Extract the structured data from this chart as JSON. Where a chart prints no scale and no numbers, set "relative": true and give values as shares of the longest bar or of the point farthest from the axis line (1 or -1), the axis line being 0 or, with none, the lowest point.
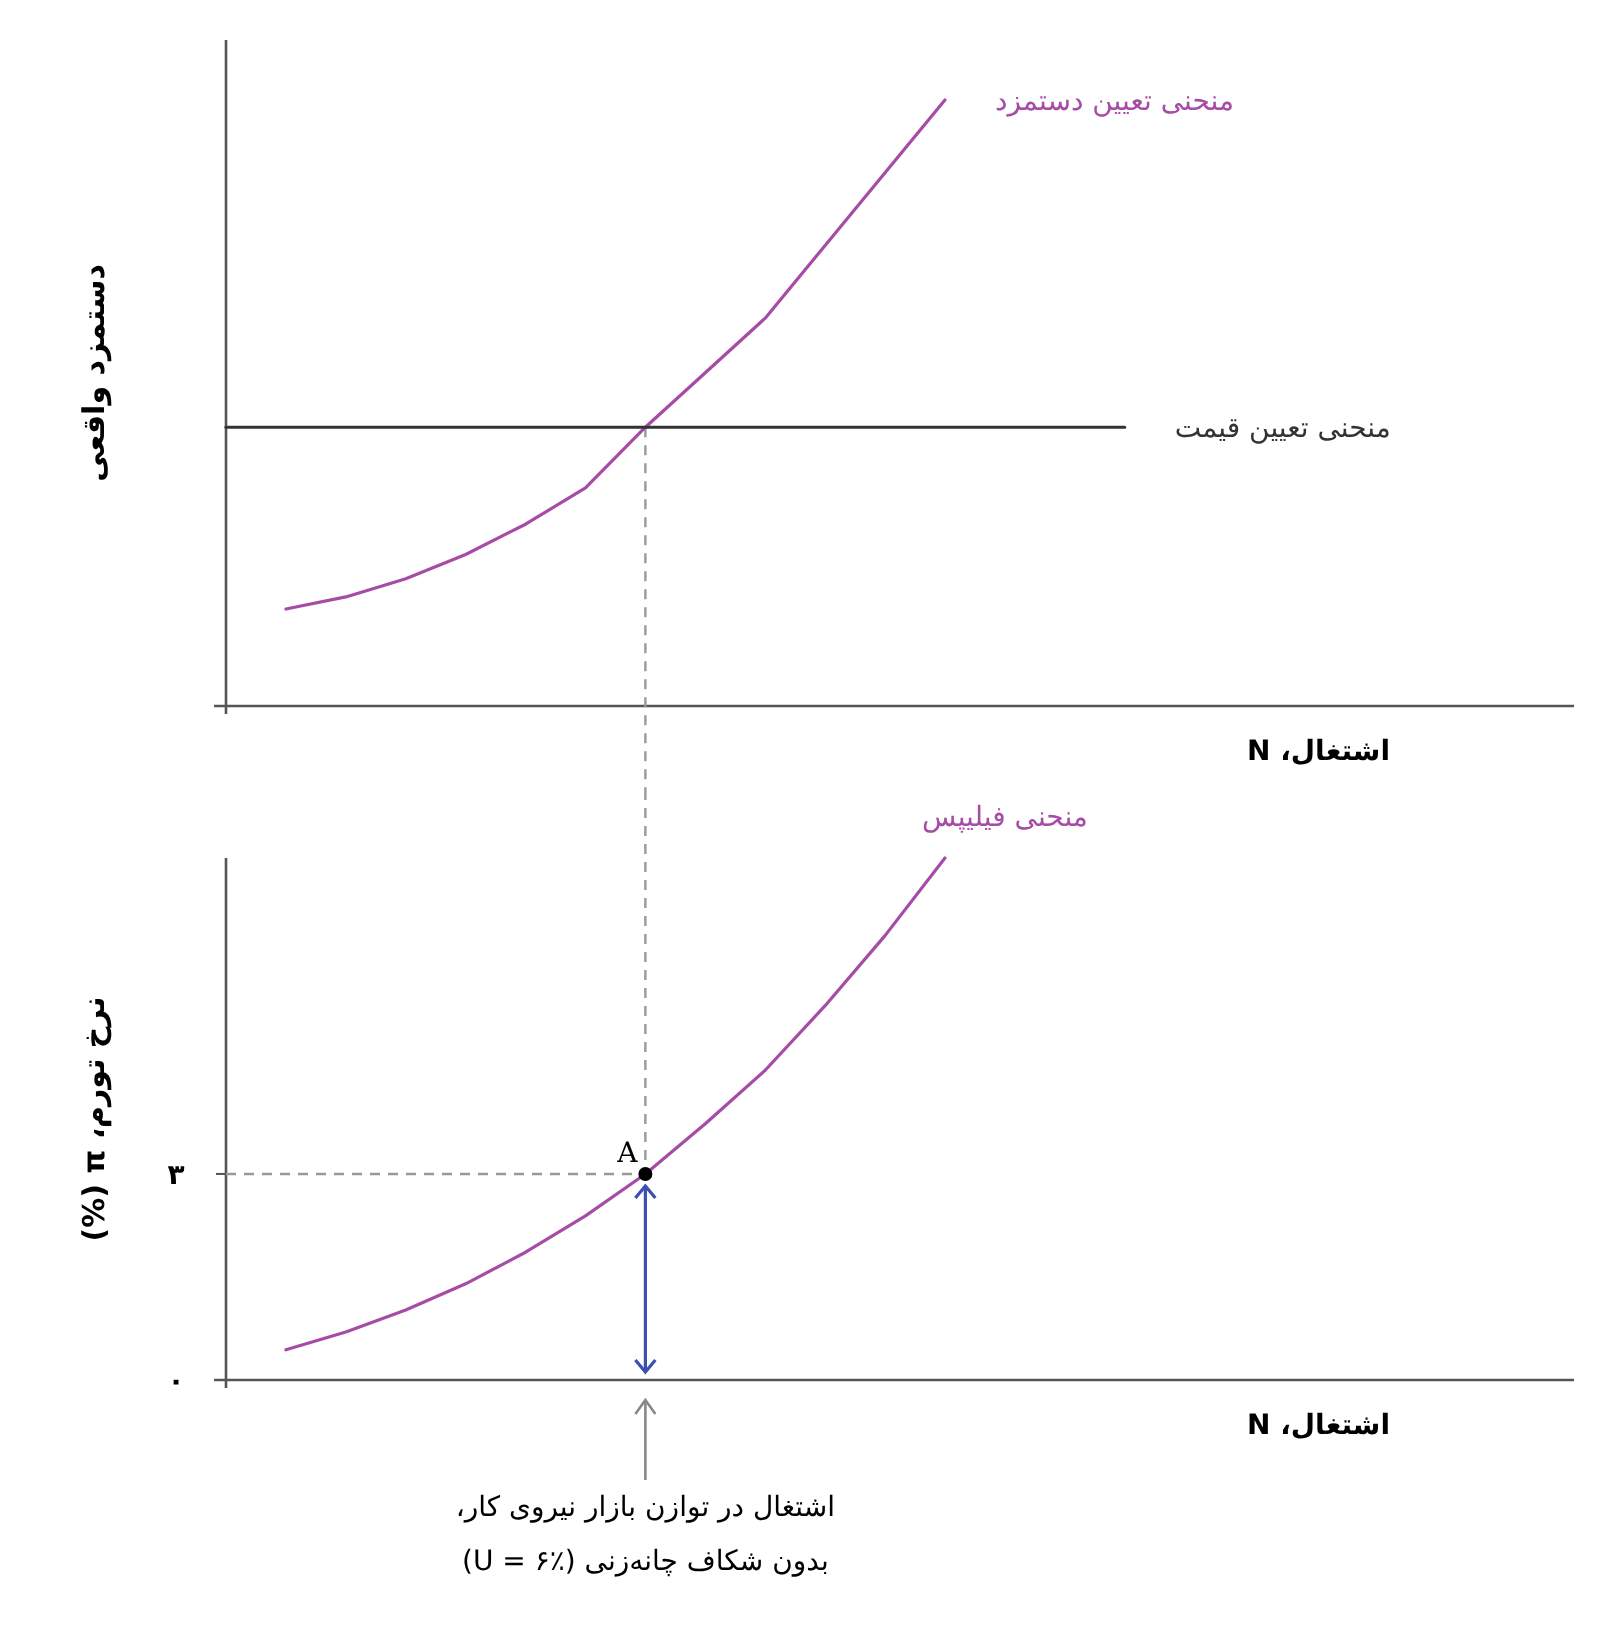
{
  "chart_data": [
    {
      "type": "line",
      "relative": true,
      "xlabel": "اشتغال، N",
      "ylabel": "دستمزد واقعی",
      "tick_labels": false,
      "categories": [
        null,
        null,
        null,
        null,
        null,
        null,
        null,
        null,
        null,
        null,
        null,
        null,
        null,
        null,
        null,
        null,
        null,
        null,
        null,
        null,
        null,
        null,
        null
      ],
      "series": [
        {
          "name": "منحنی تعیین دستمزد",
          "color": "#a64ca6",
          "values": [
            null,
            0.16,
            0.18,
            0.21,
            0.25,
            0.3,
            0.36,
            0.46,
            0.55,
            0.64,
            0.76,
            0.88,
            1.0,
            null,
            null,
            null,
            null,
            null,
            null,
            null,
            null,
            null,
            null
          ]
        },
        {
          "name": "منحنی تعیین قیمت",
          "color": "#333333",
          "values": [
            0.46,
            0.46,
            0.46,
            0.46,
            0.46,
            0.46,
            0.46,
            0.46,
            0.46,
            0.46,
            0.46,
            0.46,
            0.46,
            0.46,
            0.46,
            0.46,
            null,
            null,
            null,
            null,
            null,
            null,
            null
          ]
        }
      ]
    },
    {
      "type": "line",
      "xlabel": "اشتغال، N",
      "ylabel": "نرخ تورم، π (%)",
      "ylim": [
        0,
        7.6
      ],
      "yticks": [
        {
          "value": 0,
          "label": "۰"
        },
        {
          "value": 3,
          "label": "۳"
        }
      ],
      "tick_labels": "y",
      "categories": [
        null,
        null,
        null,
        null,
        null,
        null,
        null,
        null,
        null,
        null,
        null,
        null,
        null,
        null,
        null,
        null,
        null,
        null,
        null,
        null,
        null,
        null,
        null
      ],
      "series": [
        {
          "name": "منحنی فیلیپس",
          "color": "#a64ca6",
          "values": [
            null,
            0.44,
            0.7,
            1.02,
            1.4,
            1.86,
            2.39,
            3.0,
            3.73,
            4.51,
            5.45,
            6.47,
            7.6,
            null,
            null,
            null,
            null,
            null,
            null,
            null,
            null,
            null,
            null
          ]
        }
      ],
      "ref_lines": [
        {
          "axis": "y",
          "value": 3,
          "color": "#999999",
          "line_style": "dashed"
        }
      ],
      "annotations": [
        {
          "text": "A",
          "y": 3
        },
        "اشتغال در توازن بازار نیروی کار، بدون شکاف چانه‌زنی (U = ۶٪)"
      ]
    }
  ]
}
